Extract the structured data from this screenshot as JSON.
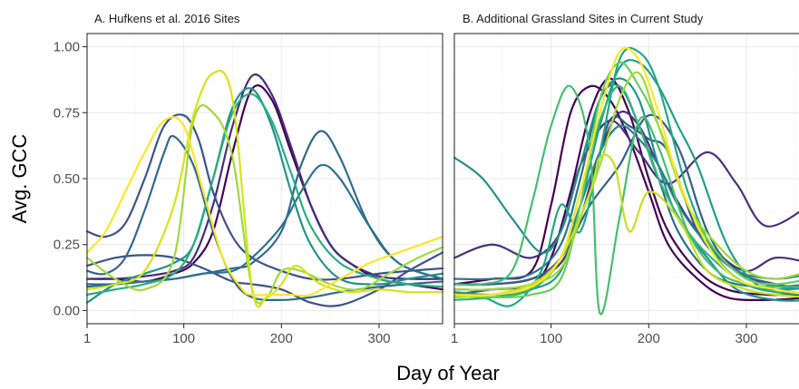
{
  "chart_data": [
    {
      "type": "line",
      "title": "A. Hufkens et al. 2016 Sites",
      "xlabel": "Day of Year",
      "ylabel": "Avg. GCC",
      "xlim": [
        1,
        365
      ],
      "ylim": [
        -0.05,
        1.05
      ],
      "x_ticks": [
        1,
        100,
        200,
        300
      ],
      "y_ticks": [
        "0.00",
        "0.25",
        "0.50",
        "0.75",
        "1.00"
      ],
      "y_tick_values": [
        0,
        0.25,
        0.5,
        0.75,
        1.0
      ],
      "grid": true,
      "series": [
        {
          "color": "#440154",
          "x": [
            1,
            30,
            60,
            90,
            110,
            130,
            150,
            170,
            190,
            210,
            230,
            250,
            270,
            300,
            330,
            365
          ],
          "y": [
            0.12,
            0.12,
            0.11,
            0.14,
            0.18,
            0.3,
            0.6,
            0.84,
            0.8,
            0.6,
            0.4,
            0.25,
            0.18,
            0.12,
            0.1,
            0.08
          ]
        },
        {
          "color": "#472d7b",
          "x": [
            1,
            30,
            60,
            90,
            110,
            130,
            150,
            170,
            190,
            210,
            230,
            250,
            270,
            300,
            330,
            365
          ],
          "y": [
            0.12,
            0.12,
            0.13,
            0.15,
            0.2,
            0.4,
            0.7,
            0.89,
            0.82,
            0.62,
            0.4,
            0.25,
            0.18,
            0.13,
            0.12,
            0.12
          ]
        },
        {
          "color": "#3b528b",
          "x": [
            1,
            20,
            40,
            60,
            80,
            100,
            115,
            130,
            150,
            170,
            200,
            230,
            260,
            300,
            330,
            365
          ],
          "y": [
            0.3,
            0.28,
            0.33,
            0.5,
            0.7,
            0.74,
            0.65,
            0.45,
            0.28,
            0.2,
            0.15,
            0.12,
            0.12,
            0.14,
            0.15,
            0.16
          ]
        },
        {
          "color": "#3b528b",
          "x": [
            1,
            30,
            60,
            90,
            120,
            150,
            170,
            200,
            230,
            260,
            300,
            330,
            365
          ],
          "y": [
            0.17,
            0.2,
            0.21,
            0.2,
            0.16,
            0.11,
            0.1,
            0.08,
            0.03,
            0.02,
            0.08,
            0.15,
            0.22
          ]
        },
        {
          "color": "#31688e",
          "x": [
            1,
            20,
            40,
            60,
            80,
            90,
            110,
            130,
            150,
            170,
            200,
            230,
            260,
            300,
            330,
            365
          ],
          "y": [
            0.15,
            0.14,
            0.2,
            0.38,
            0.6,
            0.66,
            0.55,
            0.3,
            0.12,
            0.05,
            0.04,
            0.05,
            0.07,
            0.09,
            0.1,
            0.11
          ]
        },
        {
          "color": "#31688e",
          "x": [
            1,
            30,
            60,
            90,
            120,
            150,
            170,
            200,
            220,
            240,
            260,
            290,
            320,
            365
          ],
          "y": [
            0.1,
            0.1,
            0.11,
            0.12,
            0.14,
            0.16,
            0.18,
            0.3,
            0.55,
            0.68,
            0.58,
            0.32,
            0.18,
            0.12
          ]
        },
        {
          "color": "#2c728e",
          "x": [
            1,
            30,
            60,
            90,
            120,
            150,
            170,
            200,
            220,
            240,
            260,
            290,
            320,
            365
          ],
          "y": [
            0.09,
            0.1,
            0.11,
            0.12,
            0.14,
            0.15,
            0.2,
            0.32,
            0.45,
            0.55,
            0.5,
            0.32,
            0.18,
            0.12
          ]
        },
        {
          "color": "#21918c",
          "x": [
            1,
            30,
            60,
            90,
            110,
            130,
            150,
            170,
            190,
            210,
            230,
            260,
            300,
            330,
            365
          ],
          "y": [
            0.03,
            0.1,
            0.14,
            0.18,
            0.25,
            0.5,
            0.77,
            0.84,
            0.7,
            0.45,
            0.25,
            0.12,
            0.1,
            0.12,
            0.14
          ]
        },
        {
          "color": "#28ae80",
          "x": [
            1,
            30,
            60,
            90,
            110,
            130,
            150,
            170,
            190,
            210,
            230,
            260,
            300,
            330,
            365
          ],
          "y": [
            0.06,
            0.08,
            0.1,
            0.14,
            0.25,
            0.5,
            0.75,
            0.82,
            0.72,
            0.52,
            0.32,
            0.18,
            0.12,
            0.1,
            0.09
          ]
        },
        {
          "color": "#a0da39",
          "x": [
            1,
            30,
            60,
            90,
            110,
            130,
            150,
            170,
            185,
            200,
            220,
            250,
            280,
            310,
            340,
            365
          ],
          "y": [
            0.2,
            0.12,
            0.08,
            0.2,
            0.72,
            0.75,
            0.58,
            0.08,
            0.05,
            0.15,
            0.15,
            0.1,
            0.08,
            0.14,
            0.2,
            0.24
          ]
        },
        {
          "color": "#d8e219",
          "x": [
            1,
            30,
            60,
            90,
            110,
            130,
            150,
            170,
            185,
            200,
            215,
            240,
            270,
            300,
            330,
            365
          ],
          "y": [
            0.08,
            0.1,
            0.15,
            0.4,
            0.74,
            0.9,
            0.8,
            0.08,
            0.05,
            0.1,
            0.17,
            0.1,
            0.07,
            0.08,
            0.07,
            0.07
          ]
        },
        {
          "color": "#fde725",
          "x": [
            1,
            20,
            40,
            60,
            80,
            100,
            120,
            140,
            160,
            170,
            190,
            210,
            230,
            260,
            290,
            320,
            365
          ],
          "y": [
            0.22,
            0.3,
            0.45,
            0.6,
            0.72,
            0.7,
            0.45,
            0.2,
            0.08,
            0.06,
            0.06,
            0.06,
            0.06,
            0.12,
            0.18,
            0.22,
            0.28
          ]
        }
      ]
    },
    {
      "type": "line",
      "title": "B. Additional Grassland Sites in Current Study",
      "xlabel": "Day of Year",
      "xlim": [
        1,
        365
      ],
      "ylim": [
        -0.05,
        1.05
      ],
      "x_ticks": [
        1,
        100,
        200,
        300
      ],
      "y_tick_values": [
        0,
        0.25,
        0.5,
        0.75,
        1.0
      ],
      "grid": true,
      "series": [
        {
          "color": "#440154",
          "x": [
            1,
            40,
            80,
            100,
            120,
            140,
            160,
            180,
            200,
            220,
            250,
            280,
            320,
            365
          ],
          "y": [
            0.1,
            0.12,
            0.15,
            0.4,
            0.75,
            0.85,
            0.8,
            0.65,
            0.45,
            0.25,
            0.12,
            0.05,
            0.04,
            0.05
          ]
        },
        {
          "color": "#440154",
          "x": [
            1,
            40,
            80,
            100,
            120,
            140,
            160,
            180,
            200,
            220,
            250,
            280,
            320,
            365
          ],
          "y": [
            0.08,
            0.08,
            0.1,
            0.2,
            0.45,
            0.75,
            0.88,
            0.75,
            0.5,
            0.3,
            0.15,
            0.08,
            0.06,
            0.06
          ]
        },
        {
          "color": "#46327e",
          "x": [
            1,
            40,
            80,
            110,
            130,
            160,
            190,
            220,
            260,
            290,
            320,
            365
          ],
          "y": [
            0.2,
            0.25,
            0.2,
            0.3,
            0.55,
            0.72,
            0.6,
            0.48,
            0.6,
            0.48,
            0.32,
            0.4
          ]
        },
        {
          "color": "#46327e",
          "x": [
            1,
            40,
            80,
            110,
            130,
            150,
            170,
            190,
            210,
            240,
            270,
            300,
            330,
            365
          ],
          "y": [
            0.1,
            0.1,
            0.12,
            0.18,
            0.35,
            0.6,
            0.75,
            0.7,
            0.55,
            0.35,
            0.22,
            0.15,
            0.2,
            0.18
          ]
        },
        {
          "color": "#3b528b",
          "x": [
            1,
            40,
            80,
            110,
            140,
            160,
            180,
            200,
            220,
            250,
            280,
            320,
            365
          ],
          "y": [
            0.06,
            0.08,
            0.1,
            0.2,
            0.45,
            0.72,
            0.7,
            0.65,
            0.6,
            0.3,
            0.18,
            0.1,
            0.08
          ]
        },
        {
          "color": "#365d8d",
          "x": [
            1,
            40,
            80,
            110,
            140,
            170,
            200,
            230,
            260,
            290,
            330,
            365
          ],
          "y": [
            0.1,
            0.1,
            0.12,
            0.2,
            0.4,
            0.55,
            0.74,
            0.62,
            0.3,
            0.15,
            0.1,
            0.08
          ]
        },
        {
          "color": "#2c728e",
          "x": [
            1,
            40,
            80,
            110,
            130,
            150,
            170,
            190,
            210,
            230,
            260,
            290,
            330,
            365
          ],
          "y": [
            0.12,
            0.12,
            0.14,
            0.25,
            0.5,
            0.8,
            0.85,
            0.7,
            0.5,
            0.3,
            0.15,
            0.1,
            0.09,
            0.1
          ]
        },
        {
          "color": "#26828e",
          "x": [
            1,
            40,
            80,
            110,
            130,
            150,
            170,
            190,
            210,
            230,
            260,
            290,
            330,
            365
          ],
          "y": [
            0.05,
            0.06,
            0.08,
            0.2,
            0.4,
            0.6,
            0.7,
            0.65,
            0.55,
            0.4,
            0.25,
            0.15,
            0.12,
            0.14
          ]
        },
        {
          "color": "#21918c",
          "x": [
            1,
            30,
            60,
            90,
            110,
            130,
            150,
            170,
            190,
            210,
            230,
            260,
            290,
            330,
            365
          ],
          "y": [
            0.58,
            0.5,
            0.35,
            0.22,
            0.3,
            0.55,
            0.8,
            0.88,
            0.8,
            0.55,
            0.35,
            0.2,
            0.08,
            0.04,
            0.04
          ]
        },
        {
          "color": "#1fa088",
          "x": [
            1,
            40,
            80,
            110,
            130,
            150,
            170,
            190,
            210,
            230,
            250,
            280,
            310,
            340,
            365
          ],
          "y": [
            0.07,
            0.06,
            0.08,
            0.15,
            0.4,
            0.7,
            0.92,
            0.94,
            0.85,
            0.7,
            0.55,
            0.25,
            0.1,
            0.08,
            0.09
          ]
        },
        {
          "color": "#22a884",
          "x": [
            1,
            30,
            60,
            90,
            110,
            130,
            150,
            170,
            190,
            210,
            240,
            270,
            300,
            330,
            365
          ],
          "y": [
            0.05,
            0.05,
            0.02,
            0.15,
            0.4,
            0.3,
            0.6,
            0.95,
            0.98,
            0.85,
            0.45,
            0.2,
            0.1,
            0.07,
            0.06
          ]
        },
        {
          "color": "#35b779",
          "x": [
            1,
            40,
            80,
            110,
            130,
            150,
            170,
            190,
            210,
            240,
            270,
            300,
            330,
            365
          ],
          "y": [
            0.04,
            0.05,
            0.08,
            0.2,
            0.45,
            0.72,
            0.85,
            0.7,
            0.5,
            0.3,
            0.18,
            0.1,
            0.08,
            0.06
          ]
        },
        {
          "color": "#44bf70",
          "x": [
            1,
            30,
            60,
            80,
            100,
            120,
            140,
            150,
            170,
            190,
            210,
            240,
            270,
            300,
            330,
            365
          ],
          "y": [
            0.1,
            0.1,
            0.15,
            0.4,
            0.7,
            0.85,
            0.6,
            -0.01,
            0.35,
            0.72,
            0.62,
            0.3,
            0.15,
            0.1,
            0.09,
            0.09
          ]
        },
        {
          "color": "#6ccd5a",
          "x": [
            1,
            40,
            80,
            110,
            130,
            150,
            170,
            190,
            210,
            240,
            270,
            300,
            330,
            365
          ],
          "y": [
            0.06,
            0.05,
            0.06,
            0.12,
            0.4,
            0.8,
            0.94,
            0.85,
            0.7,
            0.4,
            0.22,
            0.12,
            0.1,
            0.12
          ]
        },
        {
          "color": "#a0da39",
          "x": [
            1,
            40,
            80,
            110,
            130,
            150,
            170,
            190,
            210,
            240,
            270,
            300,
            330,
            365
          ],
          "y": [
            0.08,
            0.08,
            0.1,
            0.16,
            0.35,
            0.55,
            0.8,
            0.9,
            0.7,
            0.4,
            0.25,
            0.15,
            0.12,
            0.15
          ]
        },
        {
          "color": "#c8e020",
          "x": [
            1,
            40,
            80,
            110,
            140,
            150,
            165,
            180,
            200,
            230,
            260,
            300,
            330,
            365
          ],
          "y": [
            0.05,
            0.06,
            0.1,
            0.2,
            0.45,
            0.58,
            0.55,
            0.3,
            0.45,
            0.35,
            0.15,
            0.08,
            0.06,
            0.05
          ]
        },
        {
          "color": "#fde725",
          "x": [
            1,
            40,
            80,
            110,
            130,
            150,
            170,
            190,
            210,
            230,
            260,
            290,
            330,
            365
          ],
          "y": [
            0.06,
            0.06,
            0.09,
            0.2,
            0.45,
            0.75,
            0.98,
            0.95,
            0.75,
            0.5,
            0.25,
            0.12,
            0.08,
            0.06
          ]
        }
      ]
    }
  ]
}
